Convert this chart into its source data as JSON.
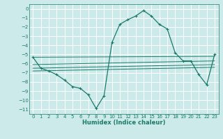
{
  "xlabel": "Humidex (Indice chaleur)",
  "bg_color": "#cceaea",
  "grid_color": "#ffffff",
  "line_color": "#1a7a6a",
  "xlim": [
    -0.5,
    23.5
  ],
  "ylim": [
    -11.5,
    0.5
  ],
  "xticks": [
    0,
    1,
    2,
    3,
    4,
    5,
    6,
    7,
    8,
    9,
    10,
    11,
    12,
    13,
    14,
    15,
    16,
    17,
    18,
    19,
    20,
    21,
    22,
    23
  ],
  "yticks": [
    0,
    -1,
    -2,
    -3,
    -4,
    -5,
    -6,
    -7,
    -8,
    -9,
    -10,
    -11
  ],
  "main_x": [
    0,
    1,
    2,
    3,
    4,
    5,
    6,
    7,
    8,
    9,
    10,
    11,
    12,
    13,
    14,
    15,
    16,
    17,
    18,
    19,
    20,
    21,
    22,
    23
  ],
  "main_y": [
    -5.3,
    -6.5,
    -6.8,
    -7.2,
    -7.8,
    -8.5,
    -8.7,
    -9.4,
    -10.9,
    -9.5,
    -3.7,
    -1.7,
    -1.2,
    -0.8,
    -0.2,
    -0.8,
    -1.7,
    -2.2,
    -4.8,
    -5.7,
    -5.7,
    -7.2,
    -8.3,
    -5.0
  ],
  "fan_lines": [
    {
      "x": [
        0,
        23
      ],
      "y": [
        -5.3,
        -5.2
      ]
    },
    {
      "x": [
        0,
        23
      ],
      "y": [
        -6.1,
        -5.7
      ]
    },
    {
      "x": [
        0,
        23
      ],
      "y": [
        -6.5,
        -6.1
      ]
    },
    {
      "x": [
        0,
        23
      ],
      "y": [
        -6.8,
        -6.4
      ]
    }
  ]
}
